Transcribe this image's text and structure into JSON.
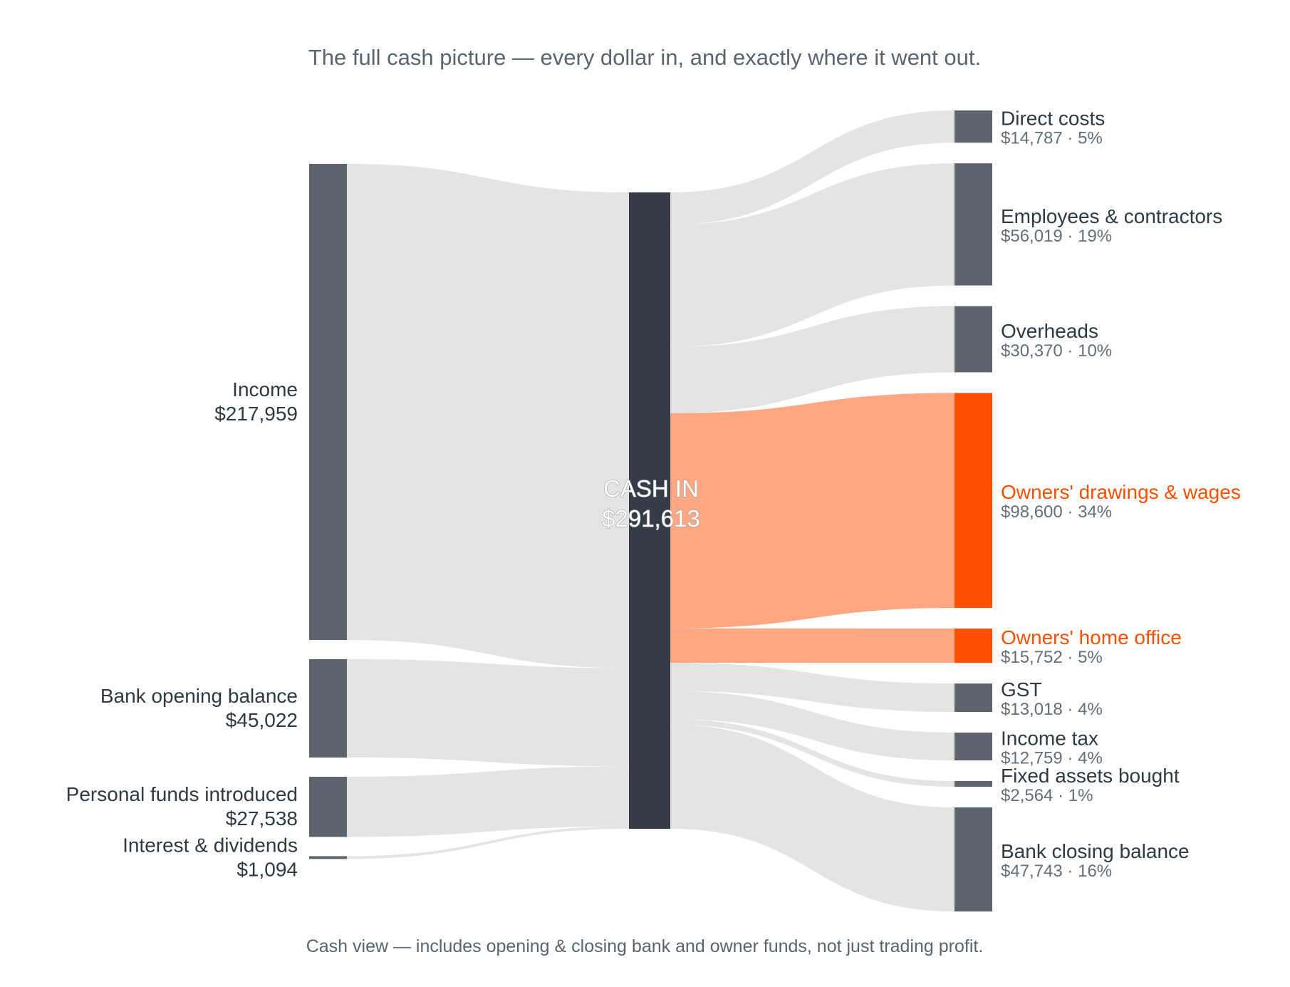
{
  "colors": {
    "node": "#5c656d",
    "center_node": "#343d47",
    "link": "#e3e4e3",
    "highlight_node": "#ff5000",
    "highlight_link": "#ffa682",
    "text": "#2f3a45",
    "subtext": "#66707a"
  },
  "chart_data": {
    "type": "sankey",
    "title": "The full cash picture — every dollar in, and exactly where it went out.",
    "footnote": "Cash view — includes opening & closing bank and owner funds, not just trading profit.",
    "center": {
      "label": "CASH IN",
      "value_label": "$291,613",
      "value": 291613
    },
    "sources": [
      {
        "name": "Income",
        "value_label": "$217,959",
        "value": 217959
      },
      {
        "name": "Bank opening balance",
        "value_label": "$45,022",
        "value": 45022
      },
      {
        "name": "Personal funds introduced",
        "value_label": "$27,538",
        "value": 27538
      },
      {
        "name": "Interest & dividends",
        "value_label": "$1,094",
        "value": 1094
      }
    ],
    "targets": [
      {
        "name": "Direct costs",
        "value_label": "$14,787",
        "pct": "5%",
        "value": 14787,
        "highlight": false
      },
      {
        "name": "Employees & contractors",
        "value_label": "$56,019",
        "pct": "19%",
        "value": 56019,
        "highlight": false
      },
      {
        "name": "Overheads",
        "value_label": "$30,370",
        "pct": "10%",
        "value": 30370,
        "highlight": false
      },
      {
        "name": "Owners' drawings & wages",
        "value_label": "$98,600",
        "pct": "34%",
        "value": 98600,
        "highlight": true
      },
      {
        "name": "Owners' home office",
        "value_label": "$15,752",
        "pct": "5%",
        "value": 15752,
        "highlight": true
      },
      {
        "name": "GST",
        "value_label": "$13,018",
        "pct": "4%",
        "value": 13018,
        "highlight": false
      },
      {
        "name": "Income tax",
        "value_label": "$12,759",
        "pct": "4%",
        "value": 12759,
        "highlight": false
      },
      {
        "name": "Fixed assets bought",
        "value_label": "$2,564",
        "pct": "1%",
        "value": 2564,
        "highlight": false
      },
      {
        "name": "Bank closing balance",
        "value_label": "$47,743",
        "pct": "16%",
        "value": 47743,
        "highlight": false
      }
    ]
  }
}
